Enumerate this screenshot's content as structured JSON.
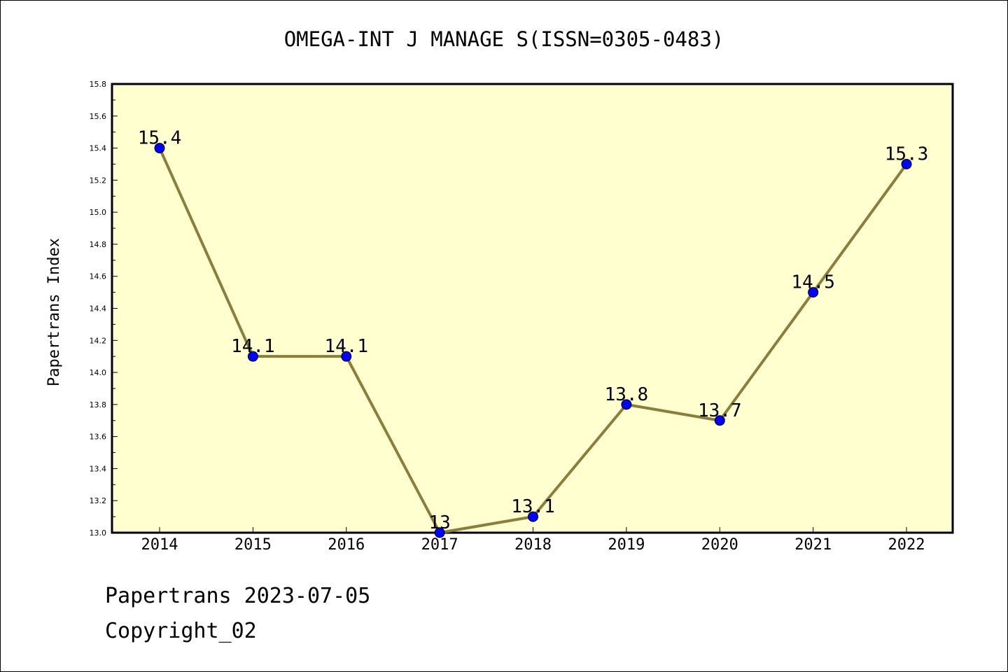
{
  "chart_data": {
    "type": "line",
    "title": "OMEGA-INT J MANAGE S(ISSN=0305-0483)",
    "xlabel": "",
    "ylabel": "Papertrans Index",
    "categories": [
      "2014",
      "2015",
      "2016",
      "2017",
      "2018",
      "2019",
      "2020",
      "2021",
      "2022"
    ],
    "series": [
      {
        "values": [
          15.4,
          14.1,
          14.1,
          13.0,
          13.1,
          13.8,
          13.7,
          14.5,
          15.3
        ],
        "data_labels": [
          "15.4",
          "14.1",
          "14.1",
          "13",
          "13.1",
          "13.8",
          "13.7",
          "14.5",
          "15.3"
        ]
      }
    ],
    "ylim": [
      13.0,
      15.8
    ],
    "yticks": [
      "13.0",
      "13.2",
      "13.4",
      "13.6",
      "13.8",
      "14.0",
      "14.2",
      "14.4",
      "14.6",
      "14.8",
      "15.0",
      "15.2",
      "15.4",
      "15.6",
      "15.8"
    ],
    "grid": false,
    "legend": "none",
    "colors": {
      "plot_background": "#ffffd0",
      "line": "#8b7d3a",
      "marker": "#0000ff",
      "axis": "#000000"
    }
  },
  "footer": {
    "line1": "Papertrans 2023-07-05",
    "line2": "Copyright_02"
  }
}
